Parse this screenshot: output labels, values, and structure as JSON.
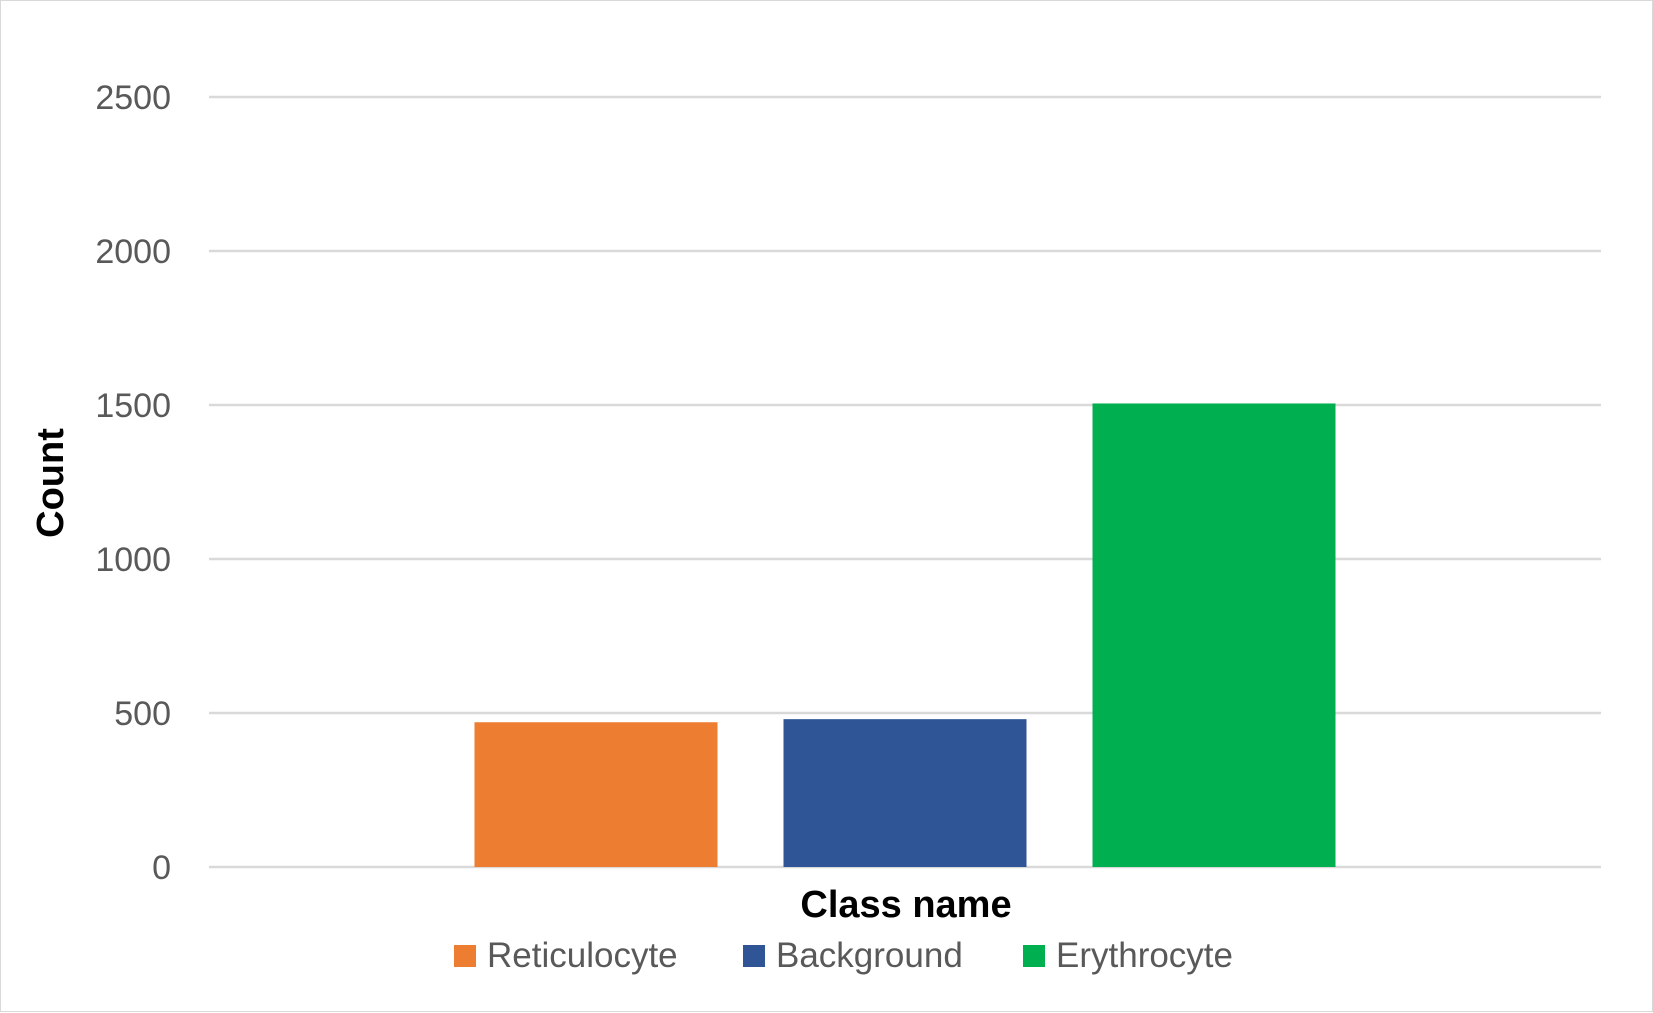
{
  "chart_data": {
    "type": "bar",
    "title": "",
    "xlabel": "Class name",
    "ylabel": "Count",
    "ylim": [
      0,
      2500
    ],
    "yticks": [
      0,
      500,
      1000,
      1500,
      2000,
      2500
    ],
    "grid": true,
    "legend_position": "bottom",
    "categories": [
      ""
    ],
    "series": [
      {
        "name": "Reticulocyte",
        "values": [
          470
        ],
        "color": "#ED7D31"
      },
      {
        "name": "Background",
        "values": [
          480
        ],
        "color": "#2F5597"
      },
      {
        "name": "Erythrocyte",
        "values": [
          1505
        ],
        "color": "#00B050"
      }
    ]
  }
}
